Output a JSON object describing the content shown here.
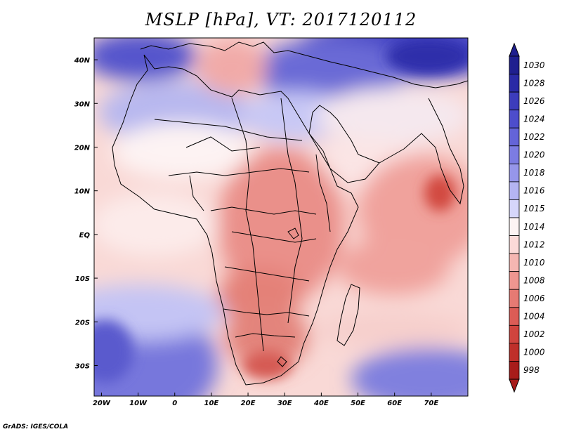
{
  "title": "MSLP [hPa], VT: 2017120112",
  "credit": "GrADS: IGES/COLA",
  "axes": {
    "lon_ticks": [
      "20W",
      "10W",
      "0",
      "10E",
      "20E",
      "30E",
      "40E",
      "50E",
      "60E",
      "70E"
    ],
    "lat_ticks": [
      "40N",
      "30N",
      "20N",
      "10N",
      "EQ",
      "10S",
      "20S",
      "30S"
    ]
  },
  "colorbar": {
    "levels": [
      "1030",
      "1028",
      "1026",
      "1024",
      "1022",
      "1020",
      "1018",
      "1016",
      "1015",
      "1014",
      "1012",
      "1010",
      "1008",
      "1006",
      "1004",
      "1002",
      "1000",
      "998"
    ],
    "colors": [
      "#1f1f8f",
      "#2a2aa6",
      "#3c3cbc",
      "#4d4dcc",
      "#6464d8",
      "#7c7ce2",
      "#9696ea",
      "#b4b4f2",
      "#d6d6fa",
      "#fdf4f4",
      "#fbdad8",
      "#f5b6b2",
      "#ee9690",
      "#e67a73",
      "#dc5c56",
      "#d0443e",
      "#bf2f2a",
      "#a81c1a"
    ]
  }
}
